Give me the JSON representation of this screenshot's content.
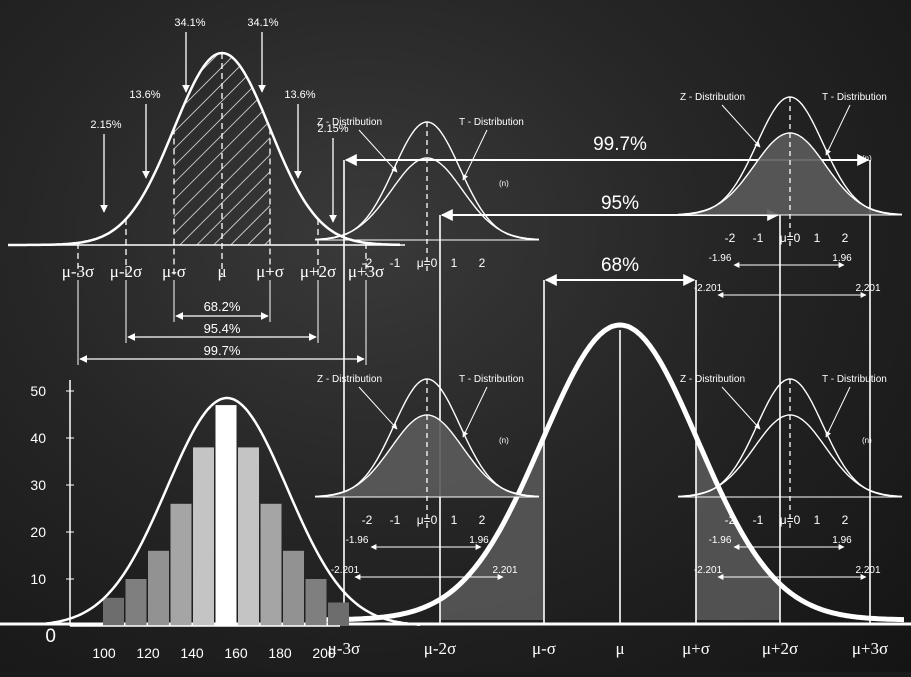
{
  "top_left": {
    "percent_labels": [
      "34.1%",
      "34.1%",
      "13.6%",
      "13.6%",
      "2.15%",
      "2.15%"
    ],
    "sigma_labels": [
      "μ-3σ",
      "μ-2σ",
      "μ-σ",
      "μ",
      "μ+σ",
      "μ+2σ",
      "μ+3σ"
    ],
    "ranges": [
      "68.2%",
      "95.4%",
      "99.7%"
    ]
  },
  "small_charts": {
    "z_label": "Z - Distribution",
    "t_label": "T - Distribution",
    "n_label": "(n)",
    "ticks": [
      "-2",
      "-1",
      "μ=0",
      "1",
      "2"
    ],
    "crit_196_neg": "-1.96",
    "crit_196_pos": "1.96",
    "crit_2201_neg": "-2.201",
    "crit_2201_pos": "2.201"
  },
  "big_bell": {
    "ranges": [
      "99.7%",
      "95%",
      "68%"
    ],
    "sigma_labels": [
      "μ-3σ",
      "μ-2σ",
      "μ-σ",
      "μ",
      "μ+σ",
      "μ+2σ",
      "μ+3σ"
    ]
  },
  "histogram": {
    "y_ticks": [
      "0",
      "10",
      "20",
      "30",
      "40",
      "50"
    ],
    "x_ticks": [
      "100",
      "120",
      "140",
      "160",
      "180",
      "200"
    ],
    "bar_values": [
      6,
      10,
      16,
      26,
      38,
      47,
      38,
      26,
      16,
      10,
      5
    ]
  }
}
